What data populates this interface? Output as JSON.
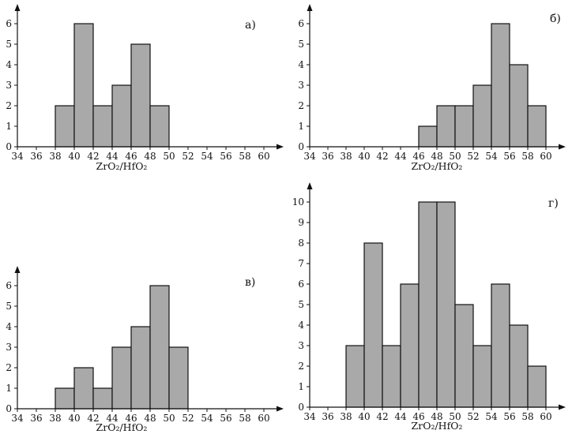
{
  "figure": {
    "panels": [
      "а)",
      "б)",
      "в)",
      "г)"
    ]
  },
  "style": {
    "bar_fill": "#a9a9a9",
    "bar_stroke": "#111111",
    "axis_color": "#111111",
    "background": "#ffffff"
  },
  "chart_data": [
    {
      "type": "bar",
      "panel_label": "а)",
      "title": "",
      "xlabel": "ZrO₂/HfO₂",
      "ylabel": "",
      "xlim": [
        34,
        60
      ],
      "ylim": [
        0,
        6
      ],
      "bin_width": 2,
      "x_ticks": [
        34,
        36,
        38,
        40,
        42,
        44,
        46,
        48,
        50,
        52,
        54,
        56,
        58,
        60
      ],
      "y_ticks": [
        0,
        1,
        2,
        3,
        4,
        5,
        6
      ],
      "bins": [
        {
          "from": 38,
          "to": 40,
          "count": 2
        },
        {
          "from": 40,
          "to": 42,
          "count": 6
        },
        {
          "from": 42,
          "to": 44,
          "count": 2
        },
        {
          "from": 44,
          "to": 46,
          "count": 3
        },
        {
          "from": 46,
          "to": 48,
          "count": 5
        },
        {
          "from": 48,
          "to": 50,
          "count": 2
        }
      ]
    },
    {
      "type": "bar",
      "panel_label": "б)",
      "title": "",
      "xlabel": "ZrO₂/HfO₂",
      "ylabel": "",
      "xlim": [
        34,
        60
      ],
      "ylim": [
        0,
        6
      ],
      "bin_width": 2,
      "x_ticks": [
        34,
        36,
        38,
        40,
        42,
        44,
        46,
        48,
        50,
        52,
        54,
        56,
        58,
        60
      ],
      "y_ticks": [
        0,
        1,
        2,
        3,
        4,
        5,
        6
      ],
      "bins": [
        {
          "from": 46,
          "to": 48,
          "count": 1
        },
        {
          "from": 48,
          "to": 50,
          "count": 2
        },
        {
          "from": 50,
          "to": 52,
          "count": 2
        },
        {
          "from": 52,
          "to": 54,
          "count": 3
        },
        {
          "from": 54,
          "to": 56,
          "count": 6
        },
        {
          "from": 56,
          "to": 58,
          "count": 4
        },
        {
          "from": 58,
          "to": 60,
          "count": 2
        }
      ]
    },
    {
      "type": "bar",
      "panel_label": "в)",
      "title": "",
      "xlabel": "ZrO₂/HfO₂",
      "ylabel": "",
      "xlim": [
        34,
        60
      ],
      "ylim": [
        0,
        6
      ],
      "bin_width": 2,
      "x_ticks": [
        34,
        36,
        38,
        40,
        42,
        44,
        46,
        48,
        50,
        52,
        54,
        56,
        58,
        60
      ],
      "y_ticks": [
        0,
        1,
        2,
        3,
        4,
        5,
        6
      ],
      "bins": [
        {
          "from": 38,
          "to": 40,
          "count": 1
        },
        {
          "from": 40,
          "to": 42,
          "count": 2
        },
        {
          "from": 42,
          "to": 44,
          "count": 1
        },
        {
          "from": 44,
          "to": 46,
          "count": 3
        },
        {
          "from": 46,
          "to": 48,
          "count": 4
        },
        {
          "from": 48,
          "to": 50,
          "count": 6
        },
        {
          "from": 50,
          "to": 52,
          "count": 3
        }
      ]
    },
    {
      "type": "bar",
      "panel_label": "г)",
      "title": "",
      "xlabel": "ZrO₂/HfO₂",
      "ylabel": "",
      "xlim": [
        34,
        60
      ],
      "ylim": [
        0,
        10
      ],
      "bin_width": 2,
      "x_ticks": [
        34,
        36,
        38,
        40,
        42,
        44,
        46,
        48,
        50,
        52,
        54,
        56,
        58,
        60
      ],
      "y_ticks": [
        0,
        1,
        2,
        3,
        4,
        5,
        6,
        7,
        8,
        9,
        10
      ],
      "bins": [
        {
          "from": 38,
          "to": 40,
          "count": 3
        },
        {
          "from": 40,
          "to": 42,
          "count": 8
        },
        {
          "from": 42,
          "to": 44,
          "count": 3
        },
        {
          "from": 44,
          "to": 46,
          "count": 6
        },
        {
          "from": 46,
          "to": 48,
          "count": 10
        },
        {
          "from": 48,
          "to": 50,
          "count": 10
        },
        {
          "from": 50,
          "to": 52,
          "count": 5
        },
        {
          "from": 52,
          "to": 54,
          "count": 3
        },
        {
          "from": 54,
          "to": 56,
          "count": 6
        },
        {
          "from": 56,
          "to": 58,
          "count": 4
        },
        {
          "from": 58,
          "to": 60,
          "count": 2
        }
      ]
    }
  ]
}
